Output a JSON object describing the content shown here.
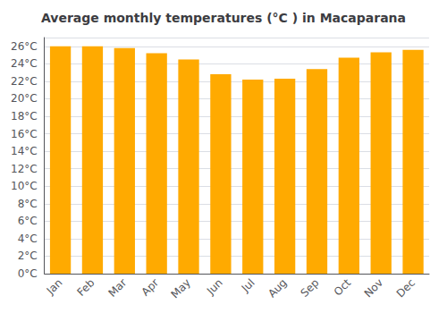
{
  "chart_data": {
    "type": "bar",
    "title": "Average monthly temperatures (°C ) in Macaparana",
    "categories": [
      "Jan",
      "Feb",
      "Mar",
      "Apr",
      "May",
      "Jun",
      "Jul",
      "Aug",
      "Sep",
      "Oct",
      "Nov",
      "Dec"
    ],
    "values": [
      26.0,
      26.0,
      25.8,
      25.2,
      24.5,
      22.8,
      22.2,
      22.3,
      23.4,
      24.7,
      25.3,
      25.6
    ],
    "color": "#FFAA00",
    "ylim": [
      0,
      27
    ],
    "yticks": [
      {
        "value": 0,
        "label": "0°C"
      },
      {
        "value": 2,
        "label": "2°C"
      },
      {
        "value": 4,
        "label": "4°C"
      },
      {
        "value": 6,
        "label": "6°C"
      },
      {
        "value": 8,
        "label": "8°C"
      },
      {
        "value": 10,
        "label": "10°C"
      },
      {
        "value": 12,
        "label": "12°C"
      },
      {
        "value": 14,
        "label": "14°C"
      },
      {
        "value": 16,
        "label": "16°C"
      },
      {
        "value": 18,
        "label": "18°C"
      },
      {
        "value": 20,
        "label": "20°C"
      },
      {
        "value": 22,
        "label": "22°C"
      },
      {
        "value": 24,
        "label": "24°C"
      },
      {
        "value": 26,
        "label": "26°C"
      }
    ],
    "grid": true
  }
}
